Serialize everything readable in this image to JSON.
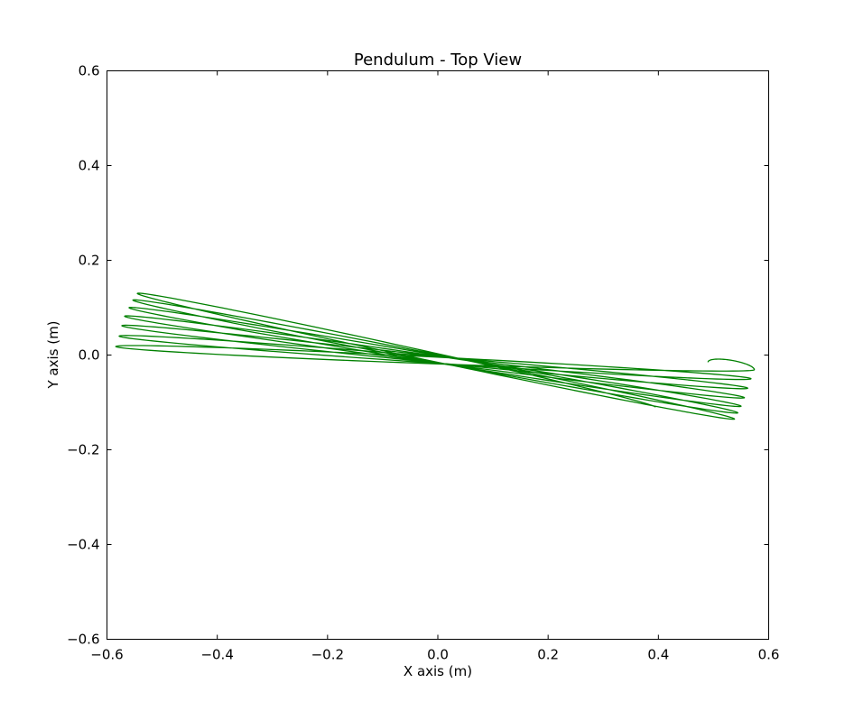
{
  "chart_data": {
    "type": "line",
    "title": "Pendulum - Top View",
    "xlabel": "X axis (m)",
    "ylabel": "Y axis (m)",
    "xlim": [
      -0.6,
      0.6
    ],
    "ylim": [
      -0.6,
      0.6
    ],
    "xticks": [
      -0.6,
      -0.4,
      -0.2,
      0.0,
      0.2,
      0.4,
      0.6
    ],
    "xtick_labels": [
      "−0.6",
      "−0.4",
      "−0.2",
      "0.0",
      "0.2",
      "0.4",
      "0.6"
    ],
    "yticks": [
      -0.6,
      -0.4,
      -0.2,
      0.0,
      0.2,
      0.4,
      0.6
    ],
    "ytick_labels": [
      "−0.6",
      "−0.4",
      "−0.2",
      "0.0",
      "0.2",
      "0.4",
      "0.6"
    ],
    "grid": false,
    "series": [
      {
        "color": "#008000",
        "start": [
          0.49,
          -0.015
        ],
        "end": [
          0.395,
          -0.11
        ],
        "turning_points": [
          [
            0.574,
            -0.031
          ],
          [
            -0.584,
            0.018
          ],
          [
            0.568,
            -0.05
          ],
          [
            -0.578,
            0.04
          ],
          [
            0.562,
            -0.07
          ],
          [
            -0.573,
            0.062
          ],
          [
            0.556,
            -0.09
          ],
          [
            -0.568,
            0.082
          ],
          [
            0.55,
            -0.108
          ],
          [
            -0.56,
            0.1
          ],
          [
            0.544,
            -0.122
          ],
          [
            -0.553,
            0.116
          ],
          [
            0.538,
            -0.135
          ],
          [
            -0.545,
            0.13
          ]
        ]
      }
    ]
  }
}
